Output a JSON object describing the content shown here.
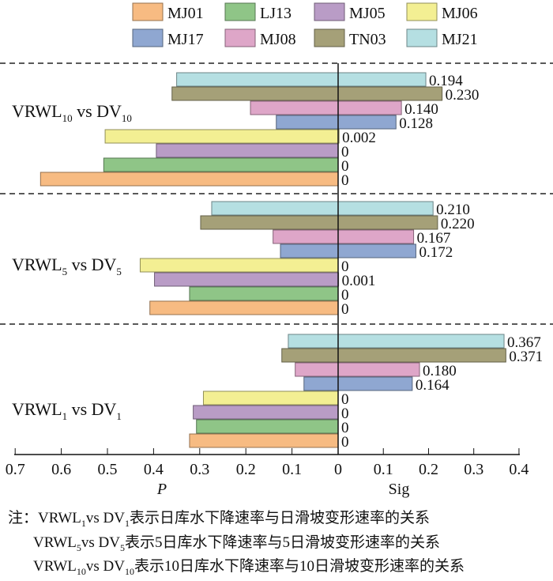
{
  "chart_data": {
    "type": "bar",
    "orientation": "horizontal-diverging",
    "left_axis": {
      "label": "P",
      "ticks": [
        "0.7",
        "0.6",
        "0.5",
        "0.4",
        "0.3",
        "0.2",
        "0.1",
        "0"
      ],
      "range": [
        0,
        0.7
      ]
    },
    "right_axis": {
      "label": "Sig",
      "ticks": [
        "0.1",
        "0.2",
        "0.3",
        "0.4"
      ],
      "range": [
        0,
        0.4
      ]
    },
    "legend": {
      "placement": "top",
      "entries": [
        "MJ01",
        "LJ13",
        "MJ05",
        "MJ06",
        "MJ17",
        "MJ08",
        "TN03",
        "MJ21"
      ]
    },
    "colors": {
      "MJ01": "#f7bb82",
      "LJ13": "#8fc587",
      "MJ05": "#b99cc6",
      "MJ06": "#f3ef93",
      "MJ17": "#8fa7d1",
      "MJ08": "#dea6c8",
      "TN03": "#a5a078",
      "MJ21": "#b5dfe2"
    },
    "bar_order": [
      "MJ21",
      "TN03",
      "MJ08",
      "MJ17",
      "MJ06",
      "MJ05",
      "LJ13",
      "MJ01"
    ],
    "groups": [
      {
        "label_main": "VRWL",
        "label_sub": "10",
        "label_vs": " vs DV",
        "label_sub2": "10",
        "P": {
          "MJ21": 0.35,
          "TN03": 0.36,
          "MJ08": 0.19,
          "MJ17": 0.134,
          "MJ06": 0.505,
          "MJ05": 0.394,
          "LJ13": 0.508,
          "MJ01": 0.645
        },
        "Sig": {
          "MJ21": "0.194",
          "TN03": "0.230",
          "MJ08": "0.140",
          "MJ17": "0.128",
          "MJ06": "0.002",
          "MJ05": "0",
          "LJ13": "0",
          "MJ01": "0"
        }
      },
      {
        "label_main": "VRWL",
        "label_sub": "5",
        "label_vs": " vs DV",
        "label_sub2": "5",
        "P": {
          "MJ21": 0.274,
          "TN03": 0.298,
          "MJ08": 0.141,
          "MJ17": 0.125,
          "MJ06": 0.429,
          "MJ05": 0.398,
          "LJ13": 0.322,
          "MJ01": 0.408
        },
        "Sig": {
          "MJ21": "0.210",
          "TN03": "0.220",
          "MJ08": "0.167",
          "MJ17": "0.172",
          "MJ06": "0",
          "MJ05": "0.001",
          "LJ13": "0",
          "MJ01": "0"
        }
      },
      {
        "label_main": "VRWL",
        "label_sub": "1",
        "label_vs": " vs DV",
        "label_sub2": "1",
        "P": {
          "MJ21": 0.108,
          "TN03": 0.122,
          "MJ08": 0.093,
          "MJ17": 0.074,
          "MJ06": 0.292,
          "MJ05": 0.314,
          "LJ13": 0.307,
          "MJ01": 0.322
        },
        "Sig": {
          "MJ21": "0.367",
          "TN03": "0.371",
          "MJ08": "0.180",
          "MJ17": "0.164",
          "MJ06": "0",
          "MJ05": "0",
          "LJ13": "0",
          "MJ01": "0"
        }
      }
    ]
  },
  "notes": {
    "prefix": "注：",
    "lines": [
      {
        "a": "VRWL",
        "s1": "1",
        "b": "vs DV",
        "s2": "1",
        "text": "表示日库水下降速率与日滑坡变形速率的关系"
      },
      {
        "a": "VRWL",
        "s1": "5",
        "b": "vs DV",
        "s2": "5",
        "text": "表示5日库水下降速率与5日滑坡变形速率的关系"
      },
      {
        "a": "VRWL",
        "s1": "10",
        "b": "vs DV",
        "s2": "10",
        "text": "表示10日库水下降速率与10日滑坡变形速率的关系"
      }
    ]
  }
}
